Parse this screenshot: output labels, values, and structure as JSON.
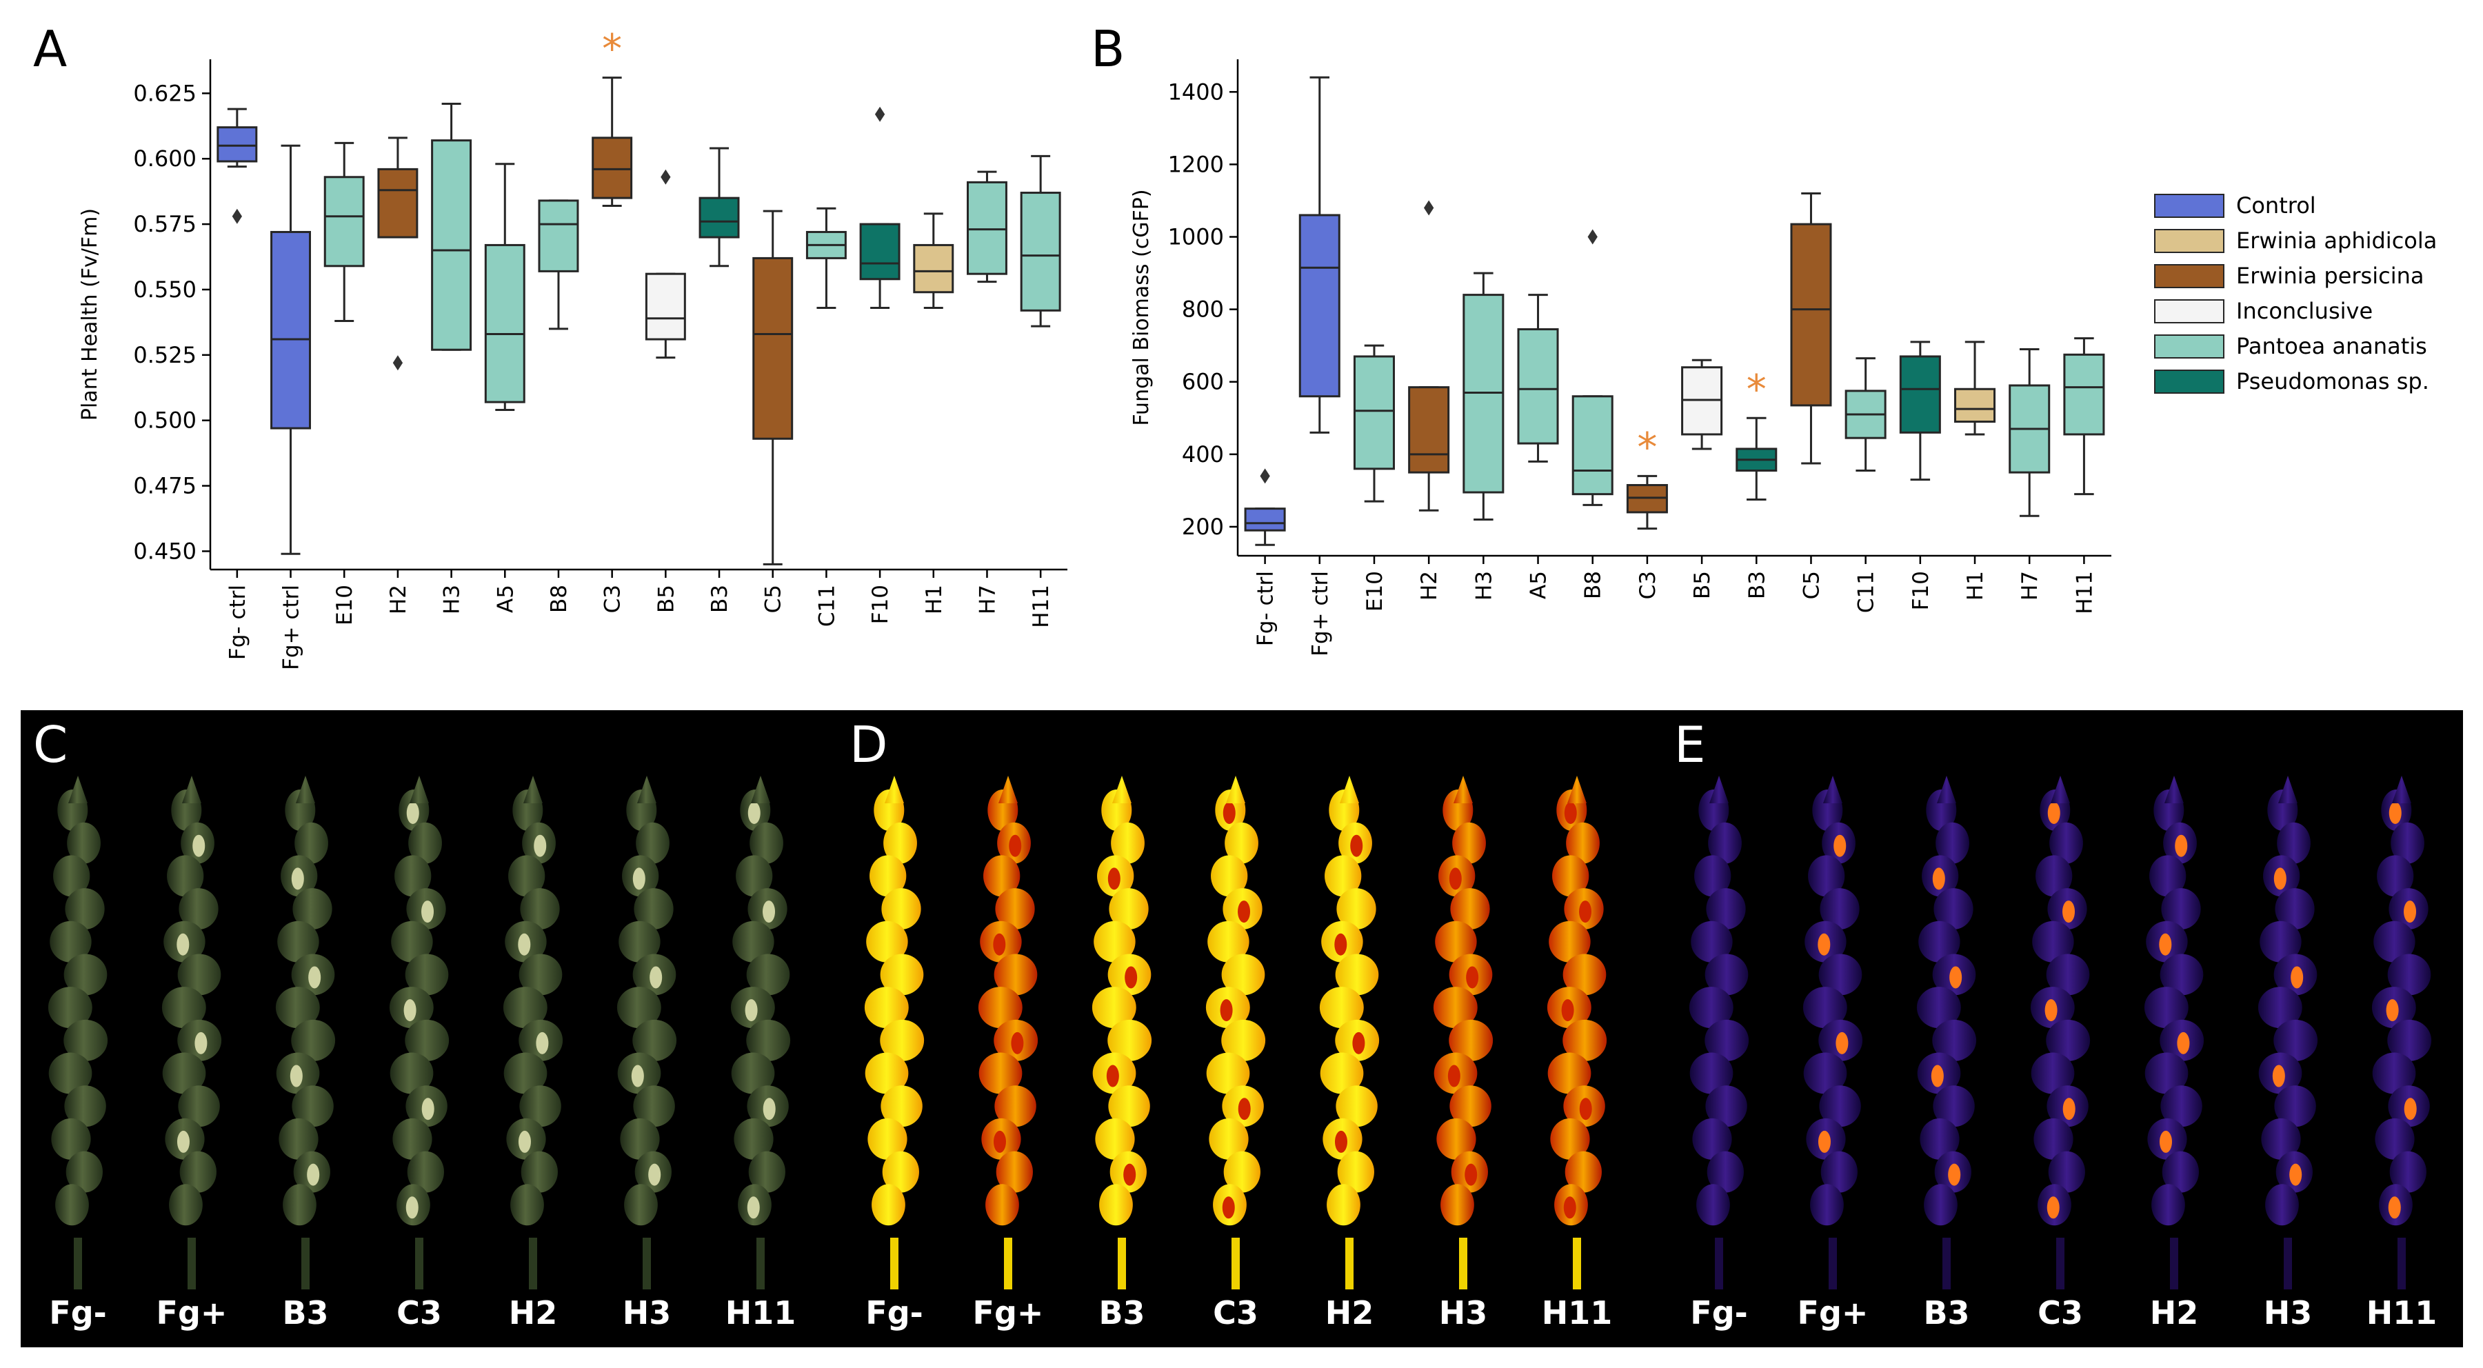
{
  "panel_labels": {
    "a": "A",
    "b": "B",
    "c": "C",
    "d": "D",
    "e": "E"
  },
  "colors": {
    "Control": "#5F73D6",
    "Erwinia aphidicola": "#DCC38C",
    "Erwinia persicina": "#9A5A24",
    "Inconclusive": "#F4F4F4",
    "Pantoea ananatis": "#8ECFC0",
    "Pseudomonas sp.": "#0E7466",
    "significance": "#E88A3A"
  },
  "legend": {
    "entries": [
      "Control",
      "Erwinia aphidicola",
      "Erwinia persicina",
      "Inconclusive",
      "Pantoea ananatis",
      "Pseudomonas sp."
    ]
  },
  "chart_data": [
    {
      "type": "box",
      "panel": "A",
      "ylabel": "Plant Health (Fv/Fm)",
      "ylim": [
        0.443,
        0.638
      ],
      "yticks": [
        "0.450",
        "0.475",
        "0.500",
        "0.525",
        "0.550",
        "0.575",
        "0.600",
        "0.625"
      ],
      "categories": [
        "Fg- ctrl",
        "Fg+ ctrl",
        "E10",
        "H2",
        "H3",
        "A5",
        "B8",
        "C3",
        "B5",
        "B3",
        "C5",
        "C11",
        "F10",
        "H1",
        "H7",
        "H11"
      ],
      "groups": [
        "Control",
        "Control",
        "Pantoea ananatis",
        "Erwinia persicina",
        "Pantoea ananatis",
        "Pantoea ananatis",
        "Pantoea ananatis",
        "Erwinia persicina",
        "Inconclusive",
        "Pseudomonas sp.",
        "Erwinia persicina",
        "Pantoea ananatis",
        "Pseudomonas sp.",
        "Erwinia aphidicola",
        "Pantoea ananatis",
        "Pantoea ananatis"
      ],
      "boxes": [
        {
          "min": 0.597,
          "q1": 0.599,
          "median": 0.605,
          "q3": 0.612,
          "max": 0.619,
          "outliers": [
            0.578
          ]
        },
        {
          "min": 0.449,
          "q1": 0.497,
          "median": 0.531,
          "q3": 0.572,
          "max": 0.605,
          "outliers": []
        },
        {
          "min": 0.538,
          "q1": 0.559,
          "median": 0.578,
          "q3": 0.593,
          "max": 0.606,
          "outliers": []
        },
        {
          "min": 0.57,
          "q1": 0.57,
          "median": 0.588,
          "q3": 0.596,
          "max": 0.608,
          "outliers": [
            0.522
          ]
        },
        {
          "min": 0.527,
          "q1": 0.527,
          "median": 0.565,
          "q3": 0.607,
          "max": 0.621,
          "outliers": []
        },
        {
          "min": 0.504,
          "q1": 0.507,
          "median": 0.533,
          "q3": 0.567,
          "max": 0.598,
          "outliers": []
        },
        {
          "min": 0.535,
          "q1": 0.557,
          "median": 0.575,
          "q3": 0.584,
          "max": 0.584,
          "outliers": []
        },
        {
          "min": 0.582,
          "q1": 0.585,
          "median": 0.596,
          "q3": 0.608,
          "max": 0.631,
          "outliers": []
        },
        {
          "min": 0.524,
          "q1": 0.531,
          "median": 0.539,
          "q3": 0.556,
          "max": 0.556,
          "outliers": [
            0.593
          ]
        },
        {
          "min": 0.559,
          "q1": 0.57,
          "median": 0.576,
          "q3": 0.585,
          "max": 0.604,
          "outliers": []
        },
        {
          "min": 0.445,
          "q1": 0.493,
          "median": 0.533,
          "q3": 0.562,
          "max": 0.58,
          "outliers": []
        },
        {
          "min": 0.543,
          "q1": 0.562,
          "median": 0.567,
          "q3": 0.572,
          "max": 0.581,
          "outliers": []
        },
        {
          "min": 0.543,
          "q1": 0.554,
          "median": 0.56,
          "q3": 0.575,
          "max": 0.575,
          "outliers": [
            0.617
          ]
        },
        {
          "min": 0.543,
          "q1": 0.549,
          "median": 0.557,
          "q3": 0.567,
          "max": 0.579,
          "outliers": []
        },
        {
          "min": 0.553,
          "q1": 0.556,
          "median": 0.573,
          "q3": 0.591,
          "max": 0.595,
          "outliers": []
        },
        {
          "min": 0.536,
          "q1": 0.542,
          "median": 0.563,
          "q3": 0.587,
          "max": 0.601,
          "outliers": []
        }
      ],
      "significant": [
        "C3"
      ],
      "significance_marker": "*"
    },
    {
      "type": "box",
      "panel": "B",
      "ylabel": "Fungal Biomass (cGFP)",
      "ylim": [
        120,
        1490
      ],
      "yticks": [
        "200",
        "400",
        "600",
        "800",
        "1000",
        "1200",
        "1400"
      ],
      "categories": [
        "Fg- ctrl",
        "Fg+ ctrl",
        "E10",
        "H2",
        "H3",
        "A5",
        "B8",
        "C3",
        "B5",
        "B3",
        "C5",
        "C11",
        "F10",
        "H1",
        "H7",
        "H11"
      ],
      "groups": [
        "Control",
        "Control",
        "Pantoea ananatis",
        "Erwinia persicina",
        "Pantoea ananatis",
        "Pantoea ananatis",
        "Pantoea ananatis",
        "Erwinia persicina",
        "Inconclusive",
        "Pseudomonas sp.",
        "Erwinia persicina",
        "Pantoea ananatis",
        "Pseudomonas sp.",
        "Erwinia aphidicola",
        "Pantoea ananatis",
        "Pantoea ananatis"
      ],
      "boxes": [
        {
          "min": 150,
          "q1": 190,
          "median": 210,
          "q3": 250,
          "max": 250,
          "outliers": [
            340
          ]
        },
        {
          "min": 460,
          "q1": 560,
          "median": 915,
          "q3": 1060,
          "max": 1440,
          "outliers": []
        },
        {
          "min": 270,
          "q1": 360,
          "median": 520,
          "q3": 670,
          "max": 700,
          "outliers": []
        },
        {
          "min": 245,
          "q1": 350,
          "median": 400,
          "q3": 585,
          "max": 585,
          "outliers": [
            1080
          ]
        },
        {
          "min": 220,
          "q1": 295,
          "median": 570,
          "q3": 840,
          "max": 900,
          "outliers": []
        },
        {
          "min": 380,
          "q1": 430,
          "median": 580,
          "q3": 745,
          "max": 840,
          "outliers": []
        },
        {
          "min": 260,
          "q1": 290,
          "median": 355,
          "q3": 560,
          "max": 560,
          "outliers": [
            1000
          ]
        },
        {
          "min": 195,
          "q1": 240,
          "median": 280,
          "q3": 315,
          "max": 340,
          "outliers": []
        },
        {
          "min": 415,
          "q1": 455,
          "median": 550,
          "q3": 640,
          "max": 660,
          "outliers": []
        },
        {
          "min": 275,
          "q1": 355,
          "median": 385,
          "q3": 415,
          "max": 500,
          "outliers": []
        },
        {
          "min": 375,
          "q1": 535,
          "median": 800,
          "q3": 1035,
          "max": 1120,
          "outliers": []
        },
        {
          "min": 355,
          "q1": 445,
          "median": 510,
          "q3": 575,
          "max": 665,
          "outliers": []
        },
        {
          "min": 330,
          "q1": 460,
          "median": 580,
          "q3": 670,
          "max": 710,
          "outliers": []
        },
        {
          "min": 455,
          "q1": 490,
          "median": 525,
          "q3": 580,
          "max": 710,
          "outliers": []
        },
        {
          "min": 230,
          "q1": 350,
          "median": 470,
          "q3": 590,
          "max": 690,
          "outliers": []
        },
        {
          "min": 290,
          "q1": 455,
          "median": 585,
          "q3": 675,
          "max": 720,
          "outliers": []
        }
      ],
      "significant": [
        "C3",
        "B3"
      ],
      "significance_marker": "*"
    }
  ],
  "photo_panels": [
    {
      "id": "C",
      "style": "rgb",
      "labels": [
        "Fg-",
        "Fg+",
        "B3",
        "C3",
        "H2",
        "H3",
        "H11"
      ]
    },
    {
      "id": "D",
      "style": "fvfm",
      "labels": [
        "Fg-",
        "Fg+",
        "B3",
        "C3",
        "H2",
        "H3",
        "H11"
      ]
    },
    {
      "id": "E",
      "style": "gfp",
      "labels": [
        "Fg-",
        "Fg+",
        "B3",
        "C3",
        "H2",
        "H3",
        "H11"
      ]
    }
  ]
}
